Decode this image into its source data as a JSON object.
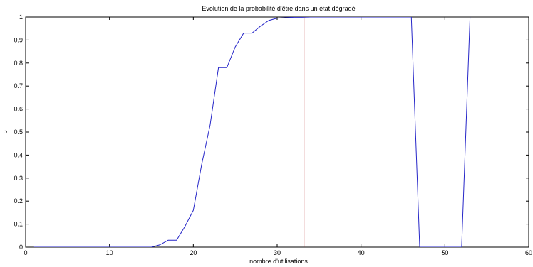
{
  "chart_data": {
    "type": "line",
    "title": "Evolution de la probabilité d'être dans un état dégradé",
    "xlabel": "nombre d'utilisations",
    "ylabel": "p",
    "xlim": [
      0,
      60
    ],
    "ylim": [
      0,
      1
    ],
    "xticks": [
      "0",
      "10",
      "20",
      "30",
      "40",
      "50",
      "60"
    ],
    "yticks": [
      "0",
      "0.1",
      "0.2",
      "0.3",
      "0.4",
      "0.5",
      "0.6",
      "0.7",
      "0.8",
      "0.9",
      "1"
    ],
    "grid": false,
    "series": [
      {
        "color": "#2626c8",
        "x": [
          1,
          2,
          3,
          4,
          5,
          6,
          7,
          8,
          9,
          10,
          11,
          12,
          13,
          14,
          15,
          16,
          17,
          18,
          19,
          20,
          21,
          22,
          23,
          24,
          25,
          26,
          27,
          28,
          29,
          30,
          31,
          32,
          33,
          34,
          35,
          36,
          37,
          38,
          39,
          40,
          41,
          42,
          43,
          44,
          45,
          46,
          47,
          48,
          49,
          50,
          51,
          52,
          53
        ],
        "y": [
          0,
          0,
          0,
          0,
          0,
          0,
          0,
          0,
          0,
          0,
          0,
          0,
          0,
          0,
          0,
          0.01,
          0.03,
          0.03,
          0.09,
          0.16,
          0.36,
          0.53,
          0.78,
          0.78,
          0.87,
          0.93,
          0.93,
          0.96,
          0.985,
          0.995,
          0.997,
          0.999,
          0.999,
          1,
          1,
          1,
          1,
          1,
          1,
          1,
          1,
          1,
          1,
          1,
          1,
          1,
          0,
          0,
          0,
          0,
          0,
          0,
          1
        ]
      }
    ],
    "vertical_line": {
      "x": 33.2,
      "color": "#b22222"
    }
  }
}
